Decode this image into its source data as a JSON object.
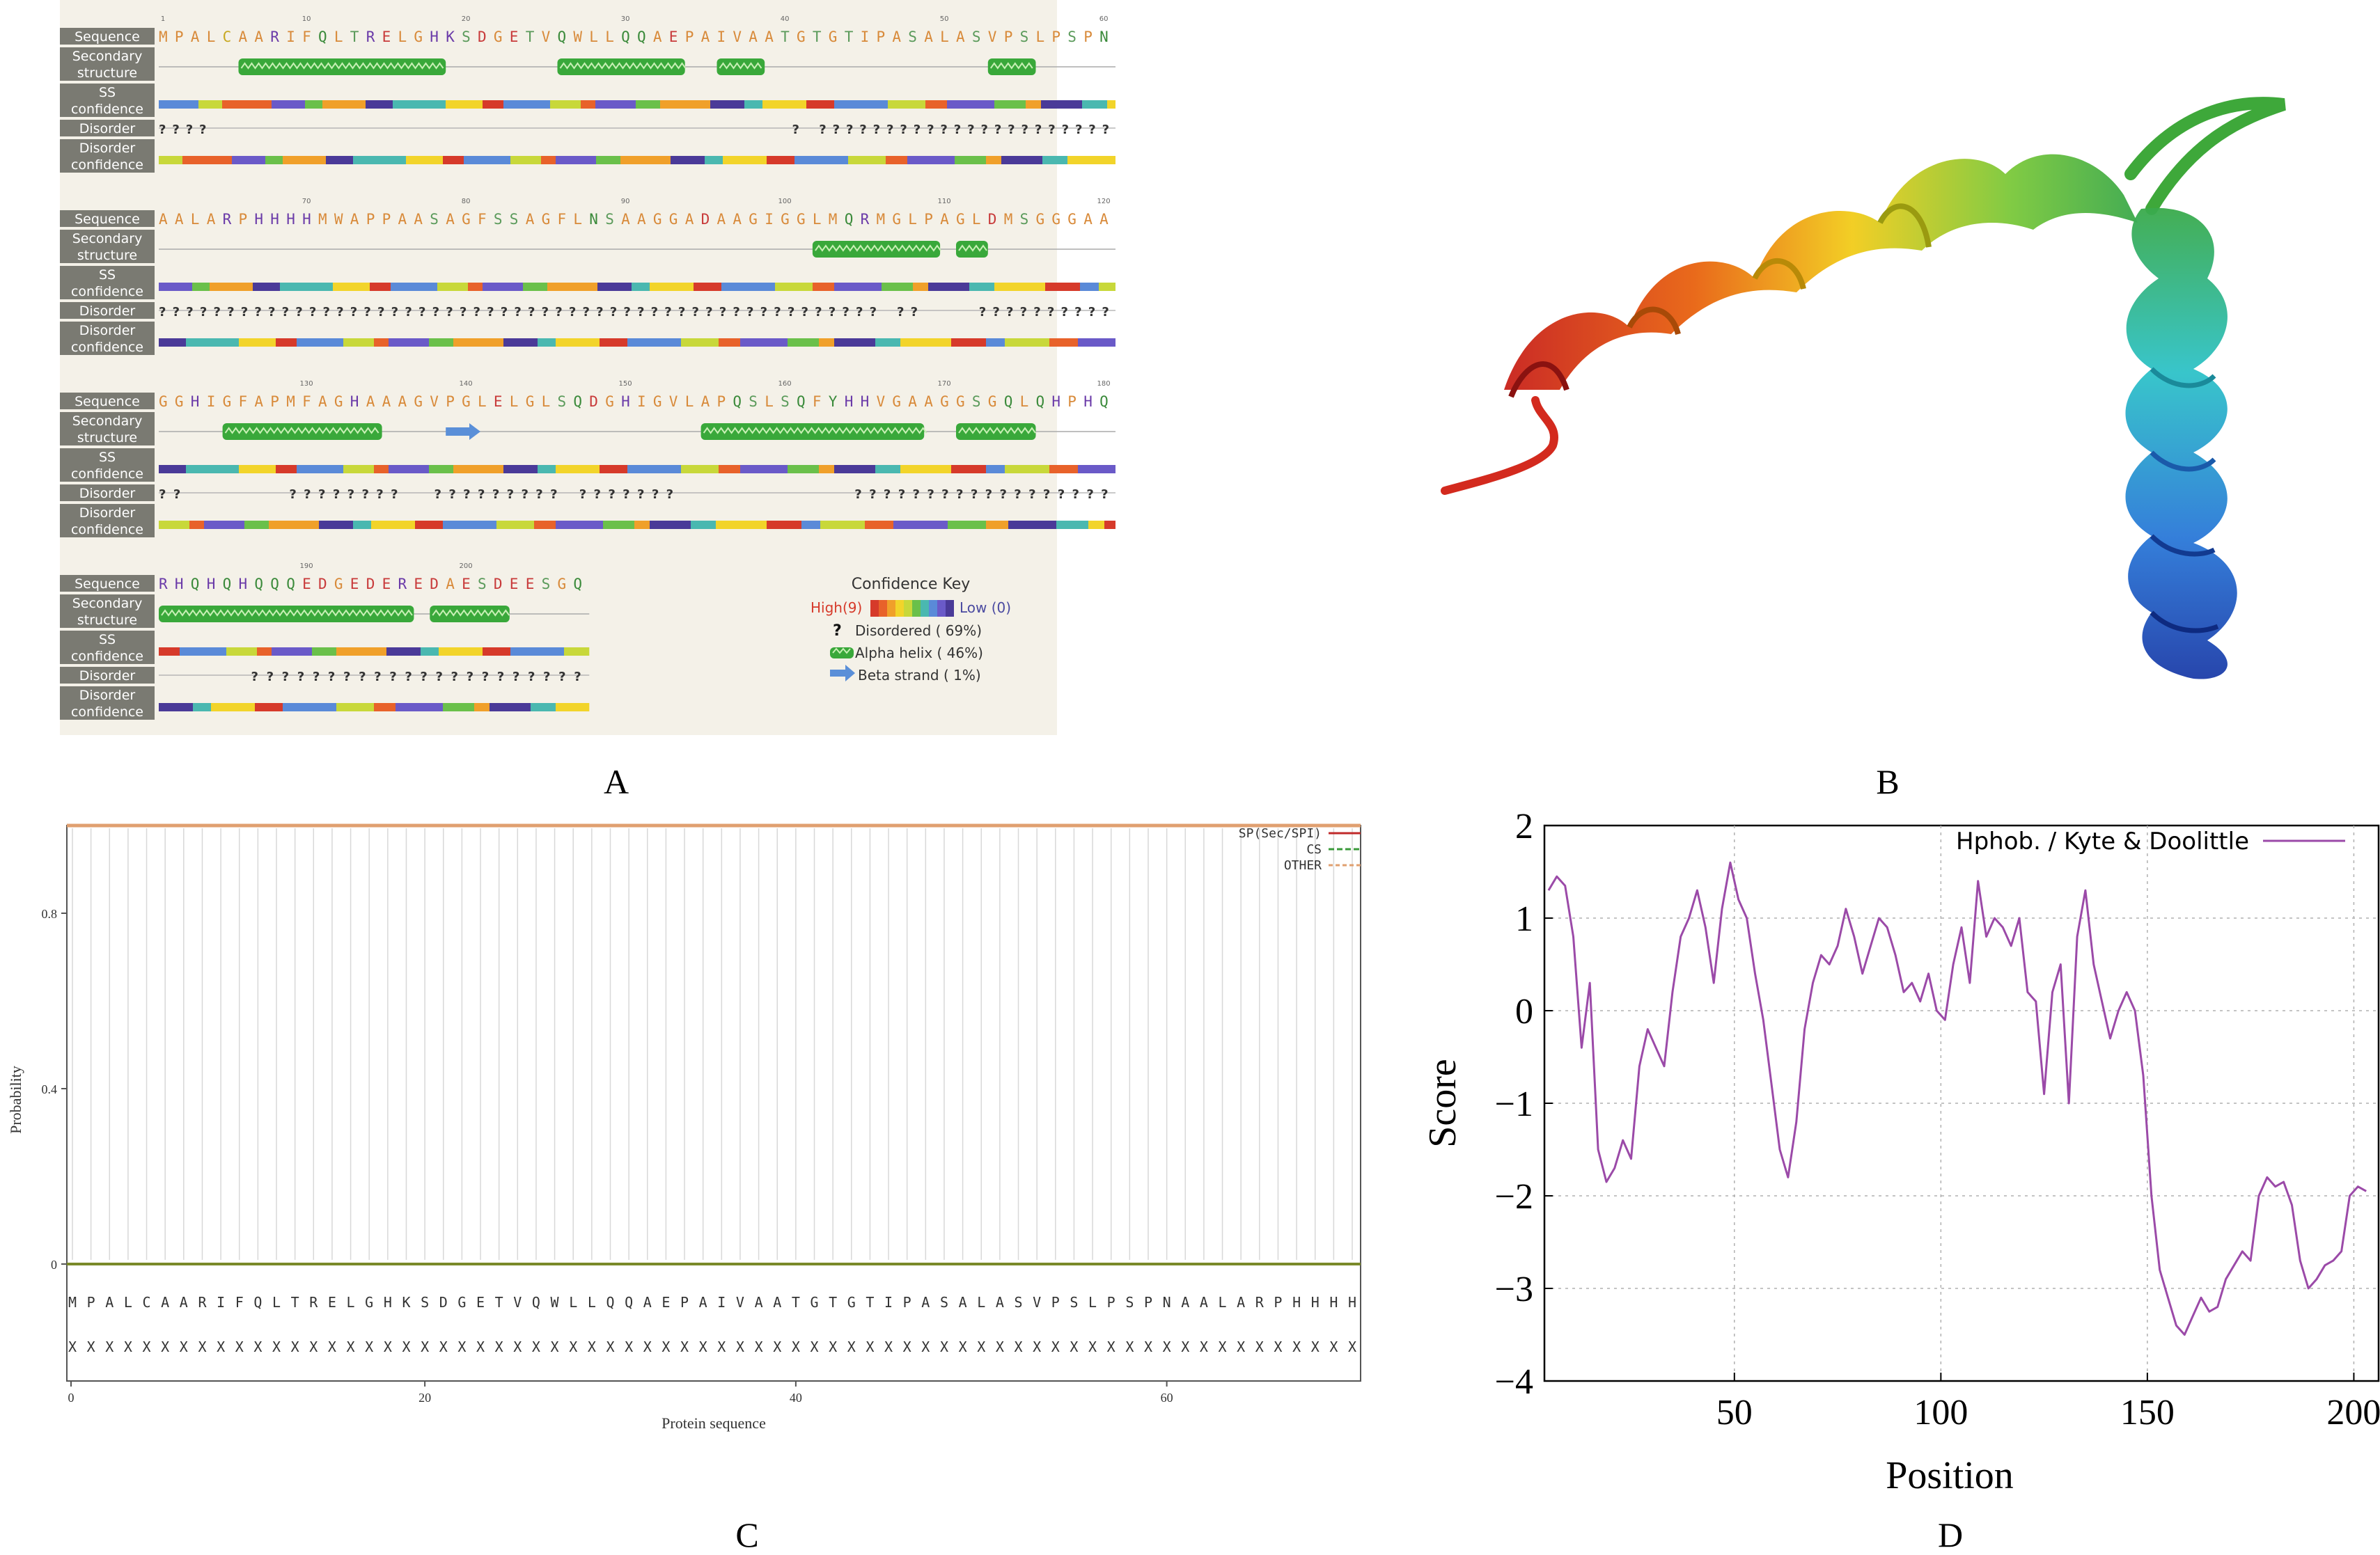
{
  "panel_labels": {
    "a": "A",
    "b": "B",
    "c": "C",
    "d": "D"
  },
  "panel_a": {
    "track_labels": {
      "sequence": "Sequence",
      "secondary_structure_1": "Secondary",
      "secondary_structure_2": "structure",
      "ss_conf_1": "SS",
      "ss_conf_2": "confidence",
      "disorder": "Disorder",
      "disorder_conf_1": "Disorder",
      "disorder_conf_2": "confidence"
    },
    "blocks": [
      {
        "start": 1,
        "ticks": [
          "1",
          "10",
          "20",
          "30",
          "40",
          "50",
          "60"
        ],
        "seq": "MPALCAARIFQLTRELGHKSDGETVQWLLQQAEPAIVAATGTGTIPASALASVPSLPSPN",
        "helix": [
          [
            6,
            18
          ],
          [
            26,
            33
          ],
          [
            36,
            38
          ],
          [
            53,
            55
          ]
        ],
        "strand": [],
        "disorder": "????...........................................?.??????????????????????"
      },
      {
        "start": 61,
        "ticks": [
          "70",
          "80",
          "90",
          "100",
          "110",
          "120"
        ],
        "seq": "AALARPHHHHMWAPPAASAGFSSAGFLNSAAGGADAAGIGGLMQRMGLPAGLDMSGGGAA",
        "helix": [
          [
            42,
            49
          ],
          [
            51,
            52
          ]
        ],
        "strand": [],
        "disorder": "?????????????????????????????????????????????????????.??....??????????"
      },
      {
        "start": 121,
        "ticks": [
          "130",
          "140",
          "150",
          "160",
          "170",
          "180"
        ],
        "seq": "GGHIGFAPMFAGHAAAGVPGLELGLSQDGHIGVLAPQSLSQFYHHVGAAGGSGQLQHPHQ",
        "helix": [
          [
            5,
            14
          ],
          [
            35,
            48
          ],
          [
            51,
            55
          ]
        ],
        "strand": [
          [
            19,
            20
          ]
        ],
        "disorder": "??.......????????..?????????.???????............??????????????????"
      },
      {
        "start": 181,
        "ticks": [
          "190",
          "200"
        ],
        "seq": "RHQHQHQQQEDGEDEREDAESDEESGQ",
        "helix": [
          [
            1,
            16
          ],
          [
            18,
            22
          ]
        ],
        "strand": [],
        "disorder": "......??????????????????????"
      }
    ],
    "key": {
      "title": "Confidence Key",
      "high": "High(9)",
      "low": "Low (0)",
      "disordered_symbol": "?",
      "disordered": "Disordered ( 69%)",
      "alpha": "Alpha helix ( 46%)",
      "beta": "Beta strand ( 1%)"
    }
  },
  "panel_c": {
    "legend": [
      "SP(Sec/SPI)",
      "CS",
      "OTHER"
    ],
    "ylabel": "Probability",
    "xlabel": "Protein sequence",
    "yticks": [
      "0.8",
      "0.4",
      "0"
    ],
    "xticks": [
      "0",
      "20",
      "40",
      "60"
    ],
    "sequence": "MPALCAARIFQLTRELGHKSDGETVQWLLQQAEPAIVAATGTGTIPASALASVPSLPSPNAALARPHHHH",
    "marker": "X"
  },
  "chart_data": {
    "type": "line",
    "title": "",
    "xlabel": "Position",
    "ylabel": "Score",
    "xlim": [
      4,
      206
    ],
    "ylim": [
      -4,
      2
    ],
    "xticks": [
      50,
      100,
      150,
      200
    ],
    "yticks": [
      2,
      1,
      0,
      -1,
      -2,
      -3,
      -4
    ],
    "ytick_labels": [
      "2",
      "1",
      "0",
      "−1",
      "−2",
      "−3",
      "−4"
    ],
    "grid": true,
    "legend_position": "top-right",
    "series": [
      {
        "name": "Hphob. / Kyte & Doolittle",
        "color": "#9b4aa8",
        "x": [
          5,
          7,
          9,
          11,
          13,
          15,
          17,
          19,
          21,
          23,
          25,
          27,
          29,
          31,
          33,
          35,
          37,
          39,
          41,
          43,
          45,
          47,
          49,
          51,
          53,
          55,
          57,
          59,
          61,
          63,
          65,
          67,
          69,
          71,
          73,
          75,
          77,
          79,
          81,
          83,
          85,
          87,
          89,
          91,
          93,
          95,
          97,
          99,
          101,
          103,
          105,
          107,
          109,
          111,
          113,
          115,
          117,
          119,
          121,
          123,
          125,
          127,
          129,
          131,
          133,
          135,
          137,
          139,
          141,
          143,
          145,
          147,
          149,
          151,
          153,
          155,
          157,
          159,
          161,
          163,
          165,
          167,
          169,
          171,
          173,
          175,
          177,
          179,
          181,
          183,
          185,
          187,
          189,
          191,
          193,
          195,
          197,
          199,
          201,
          203
        ],
        "y": [
          1.3,
          1.45,
          1.35,
          0.8,
          -0.4,
          0.3,
          -1.5,
          -1.85,
          -1.7,
          -1.4,
          -1.6,
          -0.6,
          -0.2,
          -0.4,
          -0.6,
          0.2,
          0.8,
          1.0,
          1.3,
          0.9,
          0.3,
          1.1,
          1.6,
          1.2,
          1.0,
          0.4,
          -0.1,
          -0.8,
          -1.5,
          -1.8,
          -1.2,
          -0.2,
          0.3,
          0.6,
          0.5,
          0.7,
          1.1,
          0.8,
          0.4,
          0.7,
          1.0,
          0.9,
          0.6,
          0.2,
          0.3,
          0.1,
          0.4,
          0.0,
          -0.1,
          0.5,
          0.9,
          0.3,
          1.4,
          0.8,
          1.0,
          0.9,
          0.7,
          1.0,
          0.2,
          0.1,
          -0.9,
          0.2,
          0.5,
          -1.0,
          0.8,
          1.3,
          0.5,
          0.1,
          -0.3,
          0.0,
          0.2,
          0.0,
          -0.7,
          -2.0,
          -2.8,
          -3.1,
          -3.4,
          -3.5,
          -3.3,
          -3.1,
          -3.25,
          -3.2,
          -2.9,
          -2.75,
          -2.6,
          -2.7,
          -2.0,
          -1.8,
          -1.9,
          -1.85,
          -2.1,
          -2.7,
          -3.0,
          -2.9,
          -2.75,
          -2.7,
          -2.6,
          -2.0,
          -1.9,
          -1.95
        ]
      }
    ]
  }
}
